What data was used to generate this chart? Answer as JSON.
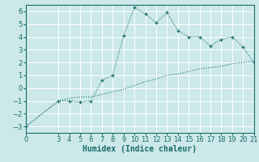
{
  "title": "",
  "xlabel": "Humidex (Indice chaleur)",
  "bg_color": "#cce8e8",
  "line_color": "#1a6b6b",
  "grid_color": "#ffffff",
  "xlim": [
    0,
    21
  ],
  "ylim": [
    -3.5,
    6.5
  ],
  "xticks": [
    0,
    3,
    4,
    5,
    6,
    7,
    8,
    9,
    10,
    11,
    12,
    13,
    14,
    15,
    16,
    17,
    18,
    19,
    20,
    21
  ],
  "yticks": [
    -3,
    -2,
    -1,
    0,
    1,
    2,
    3,
    4,
    5,
    6
  ],
  "curve1_x": [
    0,
    3,
    4,
    5,
    6,
    7,
    8,
    9,
    10,
    11,
    12,
    13,
    14,
    15,
    16,
    17,
    18,
    19,
    20,
    21
  ],
  "curve1_y": [
    -3,
    -1,
    -1,
    -1.1,
    -1,
    0.6,
    1.0,
    4.1,
    6.3,
    5.8,
    5.1,
    5.9,
    4.5,
    4.0,
    4.0,
    3.3,
    3.8,
    4.0,
    3.2,
    2.0
  ],
  "curve2_x": [
    0,
    3,
    4,
    5,
    6,
    7,
    8,
    9,
    10,
    11,
    12,
    13,
    14,
    15,
    16,
    17,
    18,
    19,
    20,
    21
  ],
  "curve2_y": [
    -3,
    -1,
    -0.8,
    -0.7,
    -0.7,
    -0.5,
    -0.3,
    -0.1,
    0.2,
    0.5,
    0.7,
    1.0,
    1.1,
    1.3,
    1.5,
    1.6,
    1.7,
    1.9,
    2.0,
    2.1
  ],
  "font_size_label": 7,
  "font_size_tick": 6
}
